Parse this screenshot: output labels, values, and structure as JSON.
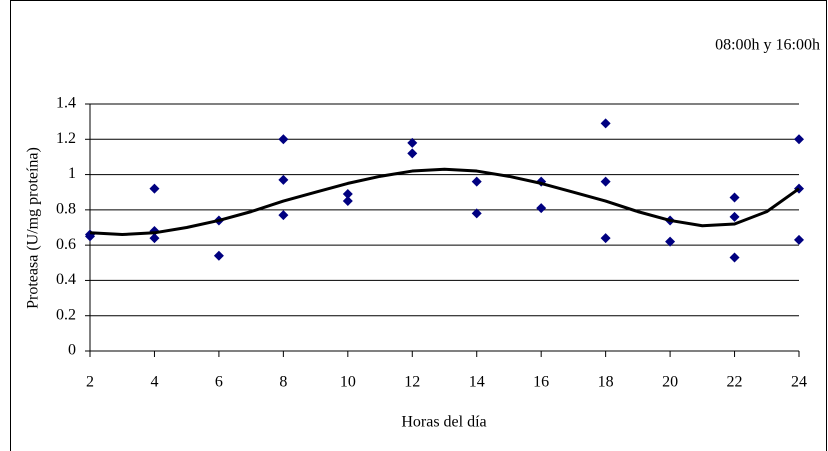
{
  "chart_data": {
    "type": "scatter",
    "annotation": "08:00h y 16:00h",
    "x_label": "Horas del día",
    "y_label": "Proteasa (U/mg proteína)",
    "xlim": [
      2,
      24
    ],
    "xticks": [
      2,
      4,
      6,
      8,
      10,
      12,
      14,
      16,
      18,
      20,
      22,
      24
    ],
    "ylim": [
      0,
      1.4
    ],
    "yticks": [
      0,
      0.2,
      0.4,
      0.6,
      0.8,
      1,
      1.2,
      1.4
    ],
    "grid": true,
    "series": [
      {
        "type": "scatter",
        "color": "#000080",
        "x": [
          2,
          2,
          4,
          4,
          4,
          6,
          6,
          8,
          8,
          8,
          10,
          10,
          12,
          12,
          14,
          14,
          16,
          16,
          18,
          18,
          18,
          20,
          20,
          22,
          22,
          22,
          24,
          24,
          24
        ],
        "values": [
          0.66,
          0.65,
          0.92,
          0.68,
          0.64,
          0.74,
          0.54,
          1.2,
          0.97,
          0.77,
          0.89,
          0.85,
          1.18,
          1.12,
          0.96,
          0.78,
          0.96,
          0.81,
          1.29,
          0.96,
          0.64,
          0.74,
          0.62,
          0.87,
          0.76,
          0.53,
          1.2,
          0.92,
          0.63
        ]
      },
      {
        "type": "line",
        "color": "#000000",
        "x": [
          2,
          3,
          4,
          5,
          6,
          7,
          8,
          9,
          10,
          11,
          12,
          13,
          14,
          15,
          16,
          17,
          18,
          19,
          20,
          21,
          22,
          23,
          24
        ],
        "values": [
          0.67,
          0.66,
          0.67,
          0.7,
          0.74,
          0.79,
          0.85,
          0.9,
          0.95,
          0.99,
          1.02,
          1.03,
          1.02,
          0.99,
          0.95,
          0.9,
          0.85,
          0.79,
          0.74,
          0.71,
          0.72,
          0.79,
          0.92
        ]
      }
    ]
  }
}
